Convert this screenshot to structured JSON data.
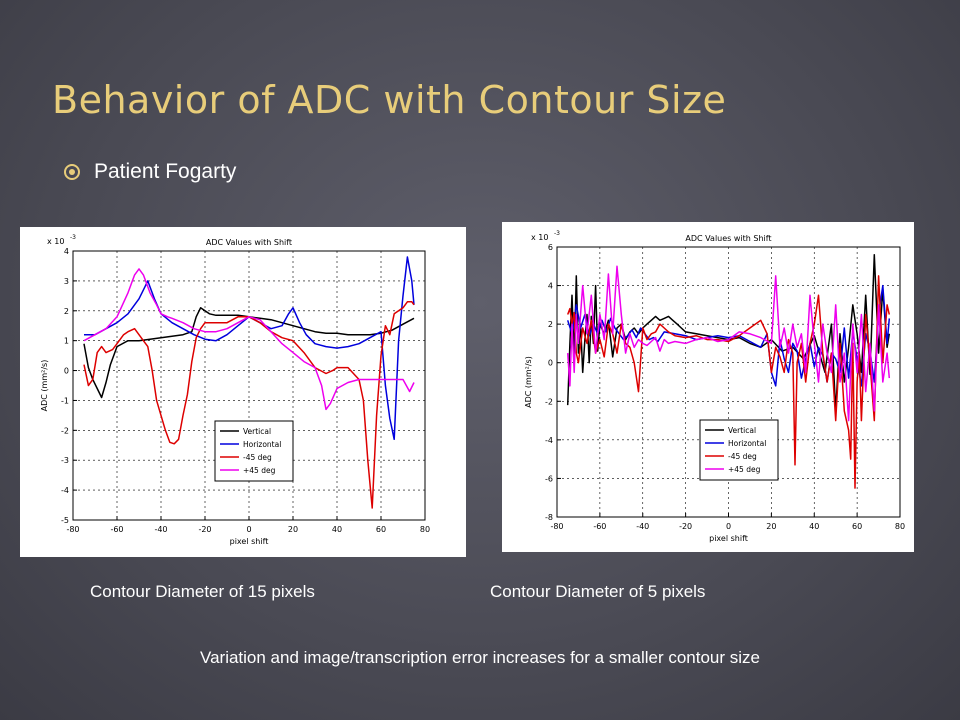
{
  "slide": {
    "title": "Behavior of ADC with Contour Size",
    "bullet": "Patient Fogarty",
    "caption_left": "Contour Diameter of 15 pixels",
    "caption_right": "Contour Diameter of 5 pixels",
    "footnote": "Variation and image/transcription error increases for a smaller contour size",
    "colors": {
      "title": "#e8cd7a",
      "bullet_icon": "#e8cd7a",
      "text": "#ffffff"
    },
    "bullet_icon": "circle-dot-icon"
  },
  "chart_data": [
    {
      "type": "line",
      "title": "ADC Values with Shift",
      "xlabel": "pixel shift",
      "ylabel": "ADC (mm²/s)",
      "y_exponent": "x 10",
      "y_exponent_power": "-3",
      "xlim": [
        -80,
        80
      ],
      "ylim": [
        -5,
        4
      ],
      "xticks": [
        -80,
        -60,
        -40,
        -20,
        0,
        20,
        40,
        60,
        80
      ],
      "yticks": [
        4,
        3,
        2,
        1,
        0,
        -1,
        -2,
        -3,
        -4,
        -5
      ],
      "grid": true,
      "legend": "lower-center",
      "series": [
        {
          "name": "Vertical",
          "color": "#000000",
          "x": [
            -75,
            -73,
            -71,
            -69,
            -67,
            -65,
            -63,
            -60,
            -55,
            -50,
            -45,
            -40,
            -35,
            -30,
            -26,
            -24,
            -22,
            -20,
            -18,
            -15,
            -10,
            -5,
            0,
            5,
            10,
            15,
            20,
            25,
            30,
            35,
            40,
            45,
            50,
            55,
            60,
            65,
            70,
            75
          ],
          "y": [
            0.9,
            0.1,
            -0.3,
            -0.6,
            -0.9,
            -0.4,
            0.2,
            0.8,
            1.0,
            1.0,
            1.05,
            1.1,
            1.15,
            1.2,
            1.3,
            1.8,
            2.1,
            2.0,
            1.9,
            1.85,
            1.85,
            1.85,
            1.8,
            1.75,
            1.7,
            1.6,
            1.5,
            1.4,
            1.3,
            1.25,
            1.25,
            1.2,
            1.2,
            1.2,
            1.25,
            1.35,
            1.55,
            1.75
          ]
        },
        {
          "name": "Horizontal",
          "color": "#0000dd",
          "x": [
            -75,
            -70,
            -65,
            -60,
            -55,
            -52,
            -50,
            -48,
            -46,
            -45,
            -43,
            -40,
            -35,
            -30,
            -25,
            -20,
            -15,
            -10,
            -5,
            0,
            5,
            10,
            15,
            18,
            20,
            23,
            26,
            30,
            35,
            40,
            45,
            50,
            55,
            60,
            62,
            64,
            66,
            68,
            70,
            72,
            74,
            75
          ],
          "y": [
            1.2,
            1.2,
            1.4,
            1.6,
            1.9,
            2.2,
            2.4,
            2.7,
            3.0,
            2.8,
            2.4,
            1.9,
            1.6,
            1.4,
            1.2,
            1.05,
            1.0,
            1.2,
            1.5,
            1.8,
            1.6,
            1.4,
            1.5,
            1.9,
            2.1,
            1.6,
            1.2,
            0.9,
            0.8,
            0.75,
            0.8,
            0.9,
            1.1,
            1.3,
            -0.5,
            -1.6,
            -2.3,
            1.0,
            2.5,
            3.8,
            3.0,
            2.2
          ]
        },
        {
          "name": "-45 deg",
          "color": "#dd0000",
          "x": [
            -75,
            -73,
            -71,
            -69,
            -67,
            -65,
            -62,
            -60,
            -57,
            -55,
            -52,
            -50,
            -48,
            -46,
            -44,
            -42,
            -40,
            -38,
            -36,
            -34,
            -32,
            -30,
            -28,
            -26,
            -24,
            -22,
            -20,
            -15,
            -10,
            -5,
            0,
            5,
            10,
            15,
            20,
            25,
            30,
            35,
            38,
            40,
            45,
            50,
            52,
            54,
            56,
            58,
            60,
            62,
            64,
            66,
            68,
            70,
            72,
            74,
            75
          ],
          "y": [
            0.2,
            -0.5,
            -0.3,
            0.6,
            0.8,
            0.6,
            0.7,
            0.9,
            1.2,
            1.3,
            1.4,
            1.2,
            1.0,
            0.8,
            0.0,
            -1.0,
            -1.5,
            -2.0,
            -2.4,
            -2.45,
            -2.3,
            -1.5,
            -0.8,
            0.3,
            1.1,
            1.4,
            1.6,
            1.6,
            1.6,
            1.8,
            1.8,
            1.6,
            1.3,
            1.1,
            1.0,
            0.6,
            0.1,
            -0.1,
            0.0,
            0.1,
            0.1,
            -0.3,
            -1.0,
            -3.0,
            -4.6,
            -1.5,
            0.5,
            1.5,
            1.2,
            1.9,
            2.0,
            2.1,
            2.3,
            2.3,
            2.2
          ]
        },
        {
          "name": "+45 deg",
          "color": "#ee00ee",
          "x": [
            -75,
            -70,
            -65,
            -60,
            -55,
            -52,
            -50,
            -48,
            -45,
            -42,
            -40,
            -37,
            -35,
            -30,
            -25,
            -20,
            -15,
            -10,
            -5,
            0,
            5,
            10,
            15,
            20,
            25,
            30,
            33,
            35,
            37,
            40,
            45,
            50,
            55,
            60,
            65,
            70,
            73,
            75
          ],
          "y": [
            1.0,
            1.2,
            1.4,
            1.8,
            2.6,
            3.2,
            3.4,
            3.2,
            2.6,
            2.2,
            1.9,
            1.8,
            1.75,
            1.6,
            1.4,
            1.3,
            1.3,
            1.4,
            1.6,
            1.8,
            1.7,
            1.3,
            0.9,
            0.6,
            0.3,
            0.1,
            -0.5,
            -1.3,
            -1.1,
            -0.6,
            -0.4,
            -0.3,
            -0.3,
            -0.3,
            -0.3,
            -0.3,
            -0.7,
            -0.4
          ]
        }
      ]
    },
    {
      "type": "line",
      "title": "ADC Values with Shift",
      "xlabel": "pixel shift",
      "ylabel": "ADC (mm²/s)",
      "y_exponent": "x 10",
      "y_exponent_power": "-3",
      "xlim": [
        -80,
        80
      ],
      "ylim": [
        -8,
        6
      ],
      "xticks": [
        -80,
        -60,
        -40,
        -20,
        0,
        20,
        40,
        60,
        80
      ],
      "yticks": [
        6,
        4,
        2,
        0,
        -2,
        -4,
        -6,
        -8
      ],
      "grid": true,
      "legend": "lower-center",
      "series": [
        {
          "name": "Vertical",
          "color": "#000000",
          "x": [
            -75,
            -74,
            -73,
            -72,
            -71,
            -70,
            -69,
            -68,
            -67,
            -66,
            -65,
            -64,
            -63,
            -62,
            -61,
            -60,
            -58,
            -56,
            -54,
            -52,
            -50,
            -48,
            -46,
            -44,
            -42,
            -40,
            -38,
            -36,
            -34,
            -32,
            -30,
            -28,
            -26,
            -24,
            -22,
            -20,
            -15,
            -10,
            -5,
            0,
            5,
            10,
            15,
            20,
            25,
            30,
            35,
            40,
            45,
            48,
            50,
            52,
            54,
            56,
            58,
            60,
            62,
            64,
            66,
            68,
            70,
            72,
            74,
            75
          ],
          "y": [
            -2.2,
            1.0,
            3.5,
            0.2,
            4.5,
            0.5,
            2.0,
            -0.5,
            1.2,
            2.5,
            0.0,
            2.4,
            1.0,
            4.0,
            0.6,
            2.0,
            1.5,
            2.2,
            0.3,
            1.8,
            2.0,
            1.2,
            1.6,
            1.8,
            1.5,
            1.8,
            2.0,
            2.2,
            2.4,
            2.2,
            2.3,
            2.4,
            2.2,
            2.0,
            1.8,
            1.6,
            1.5,
            1.4,
            1.3,
            1.2,
            1.3,
            1.0,
            0.8,
            1.2,
            0.6,
            0.8,
            0.2,
            1.4,
            -0.5,
            2.0,
            -2.5,
            1.5,
            -1.0,
            0.8,
            3.0,
            1.5,
            -0.5,
            3.5,
            -0.6,
            5.6,
            0.5,
            3.8,
            0.8,
            1.5
          ]
        },
        {
          "name": "Horizontal",
          "color": "#0000dd",
          "x": [
            -75,
            -73,
            -71,
            -69,
            -67,
            -65,
            -63,
            -61,
            -59,
            -57,
            -55,
            -53,
            -51,
            -49,
            -47,
            -45,
            -43,
            -41,
            -39,
            -37,
            -35,
            -33,
            -30,
            -25,
            -20,
            -15,
            -10,
            -5,
            0,
            5,
            10,
            15,
            18,
            20,
            22,
            24,
            26,
            28,
            30,
            32,
            34,
            36,
            38,
            40,
            42,
            44,
            46,
            48,
            50,
            52,
            54,
            56,
            58,
            60,
            62,
            64,
            66,
            68,
            70,
            72,
            74,
            75
          ],
          "y": [
            2.2,
            1.5,
            3.0,
            1.8,
            2.5,
            1.4,
            2.0,
            1.5,
            2.2,
            1.6,
            2.3,
            1.8,
            1.5,
            1.2,
            1.4,
            1.7,
            1.3,
            1.8,
            1.5,
            1.2,
            1.3,
            1.1,
            1.6,
            1.5,
            1.4,
            1.2,
            1.3,
            1.4,
            1.3,
            1.4,
            1.1,
            0.8,
            1.5,
            -0.5,
            -1.2,
            1.2,
            0.2,
            -0.5,
            1.0,
            0.6,
            -0.8,
            0.2,
            1.0,
            -0.2,
            0.8,
            0.4,
            -1.0,
            0.5,
            0.2,
            -0.5,
            1.8,
            -0.8,
            1.6,
            0.2,
            -1.2,
            1.5,
            0.6,
            -1.0,
            2.5,
            4.0,
            1.0,
            2.3
          ]
        },
        {
          "name": "-45 deg",
          "color": "#dd0000",
          "x": [
            -75,
            -74,
            -73,
            -72,
            -71,
            -70,
            -68,
            -66,
            -64,
            -62,
            -60,
            -58,
            -56,
            -54,
            -52,
            -50,
            -48,
            -46,
            -44,
            -42,
            -40,
            -38,
            -36,
            -34,
            -32,
            -30,
            -28,
            -25,
            -20,
            -15,
            -10,
            -5,
            0,
            5,
            10,
            15,
            18,
            20,
            22,
            24,
            26,
            28,
            30,
            31,
            32,
            34,
            36,
            38,
            40,
            42,
            44,
            46,
            48,
            50,
            52,
            54,
            56,
            57,
            58,
            59,
            60,
            61,
            62,
            64,
            66,
            68,
            70,
            72,
            74,
            75
          ],
          "y": [
            2.5,
            2.8,
            2.0,
            2.6,
            0.5,
            0.0,
            1.8,
            1.0,
            2.2,
            0.5,
            1.2,
            0.3,
            2.0,
            1.5,
            0.5,
            2.0,
            1.0,
            0.8,
            0.0,
            -1.5,
            1.8,
            1.2,
            1.5,
            1.6,
            2.0,
            1.8,
            1.6,
            1.4,
            1.3,
            1.4,
            1.2,
            1.2,
            1.1,
            1.4,
            1.8,
            2.2,
            1.5,
            -0.5,
            0.8,
            0.3,
            -0.5,
            1.2,
            0.5,
            -5.3,
            0.0,
            1.0,
            -1.0,
            1.0,
            2.0,
            3.5,
            0.5,
            -1.0,
            0.5,
            -3.0,
            1.0,
            -2.5,
            -3.5,
            -5.0,
            1.0,
            -6.5,
            -1.0,
            0.5,
            -3.0,
            2.5,
            0.0,
            -3.0,
            4.5,
            0.0,
            3.0,
            2.5
          ]
        },
        {
          "name": "+45 deg",
          "color": "#ee00ee",
          "x": [
            -75,
            -74,
            -73,
            -72,
            -71,
            -70,
            -68,
            -66,
            -64,
            -62,
            -60,
            -58,
            -56,
            -54,
            -52,
            -50,
            -48,
            -46,
            -44,
            -42,
            -40,
            -38,
            -36,
            -34,
            -32,
            -30,
            -28,
            -25,
            -20,
            -15,
            -10,
            -5,
            0,
            5,
            10,
            15,
            20,
            22,
            24,
            26,
            28,
            30,
            32,
            34,
            36,
            38,
            40,
            42,
            44,
            46,
            48,
            50,
            52,
            54,
            56,
            58,
            60,
            62,
            64,
            66,
            68,
            70,
            72,
            74,
            75
          ],
          "y": [
            0.5,
            -1.2,
            2.0,
            -0.5,
            2.5,
            1.0,
            4.0,
            1.5,
            3.5,
            0.5,
            2.5,
            1.2,
            4.6,
            1.5,
            5.0,
            2.5,
            0.5,
            1.5,
            0.8,
            1.2,
            1.0,
            0.9,
            1.1,
            1.3,
            0.6,
            1.2,
            1.0,
            1.1,
            1.0,
            1.2,
            1.3,
            1.1,
            1.2,
            1.6,
            1.5,
            1.3,
            1.0,
            4.5,
            0.8,
            1.8,
            0.5,
            2.0,
            0.8,
            1.5,
            -0.5,
            3.5,
            1.0,
            -1.0,
            2.0,
            0.5,
            -0.5,
            3.0,
            -1.0,
            0.5,
            -3.0,
            2.0,
            -0.5,
            2.5,
            -1.5,
            1.0,
            -2.5,
            3.0,
            -1.0,
            0.5,
            -0.8
          ]
        }
      ]
    }
  ]
}
